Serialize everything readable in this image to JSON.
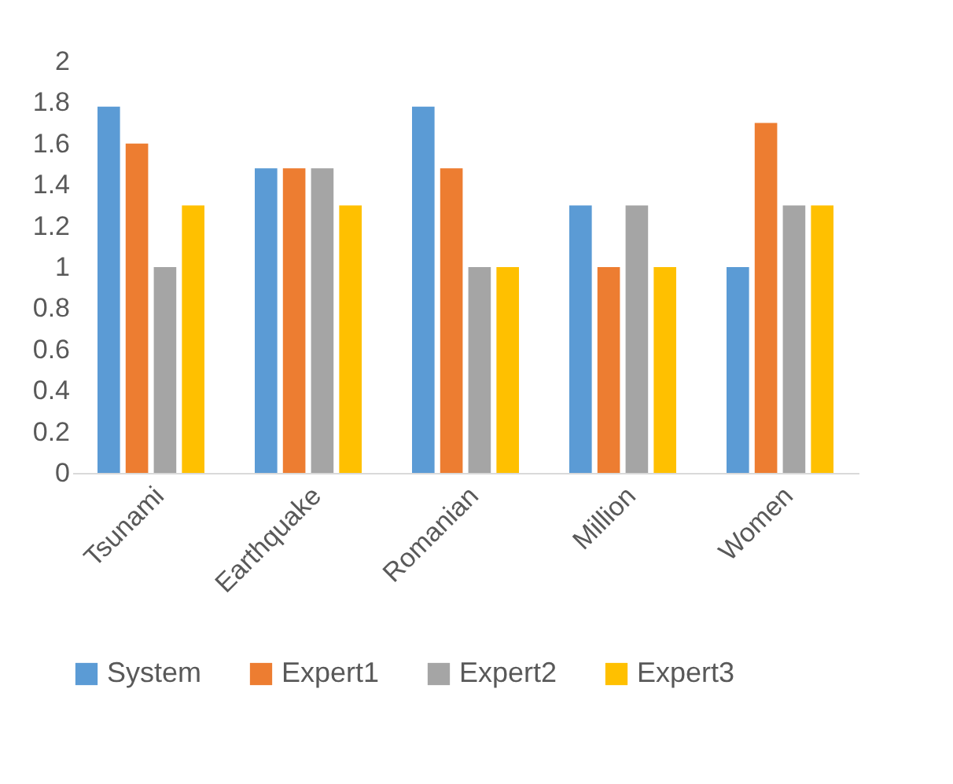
{
  "chart_data": {
    "type": "bar",
    "categories": [
      "Tsunami",
      "Earthquake",
      "Romanian",
      "Million",
      "Women"
    ],
    "series": [
      {
        "name": "System",
        "color": "#5b9bd5",
        "values": [
          1.78,
          1.48,
          1.78,
          1.3,
          1.0
        ]
      },
      {
        "name": "Expert1",
        "color": "#ed7d31",
        "values": [
          1.6,
          1.48,
          1.48,
          1.0,
          1.7
        ]
      },
      {
        "name": "Expert2",
        "color": "#a5a5a5",
        "values": [
          1.0,
          1.48,
          1.0,
          1.3,
          1.3
        ]
      },
      {
        "name": "Expert3",
        "color": "#ffc000",
        "values": [
          1.3,
          1.3,
          1.0,
          1.0,
          1.3
        ]
      }
    ],
    "ylim": [
      0,
      2
    ],
    "yticks": [
      0,
      0.2,
      0.4,
      0.6,
      0.8,
      1,
      1.2,
      1.4,
      1.6,
      1.8,
      2
    ],
    "grid": false,
    "legend": "bottom"
  }
}
